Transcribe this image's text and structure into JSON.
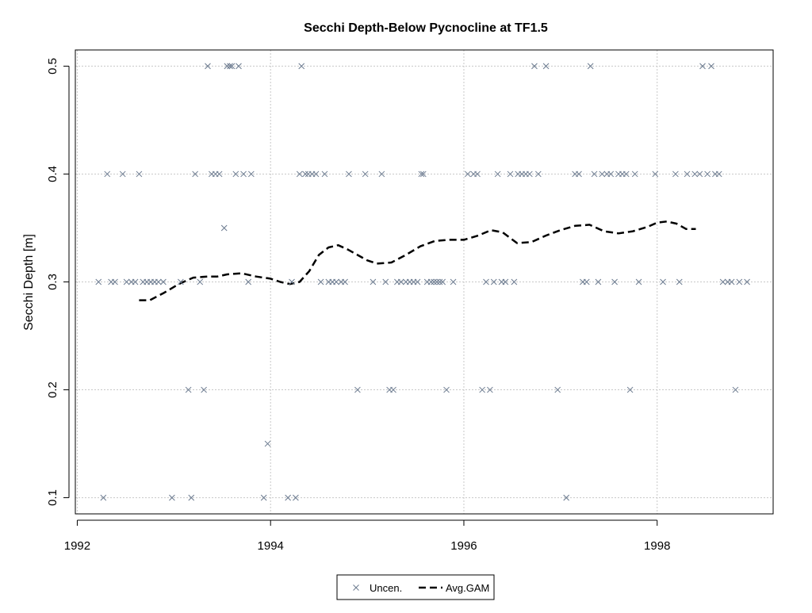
{
  "colors": {
    "points": "#6b7a8f",
    "gam": "#000000",
    "grid": "#c8c8c8",
    "frame": "#000000",
    "background": "#ffffff"
  },
  "chart_data": {
    "type": "scatter",
    "title": "Secchi Depth-Below Pycnocline at TF1.5",
    "xlabel": "",
    "ylabel": "Secchi Depth [m]",
    "xlim": [
      1991.98,
      1999.2
    ],
    "ylim": [
      0.085,
      0.515
    ],
    "x_ticks": [
      1992,
      1994,
      1996,
      1998
    ],
    "x_tick_labels": [
      "1992",
      "1994",
      "1996",
      "1998"
    ],
    "y_ticks": [
      0.1,
      0.2,
      0.3,
      0.4,
      0.5
    ],
    "y_tick_labels": [
      "0.1",
      "0.2",
      "0.3",
      "0.4",
      "0.5"
    ],
    "grid": true,
    "legend": {
      "placement": "bottom-center",
      "entries": [
        {
          "label": "Uncen.",
          "marker": "x-icon"
        },
        {
          "label": "Avg.GAM",
          "marker": "dashed-line"
        }
      ]
    },
    "series": [
      {
        "name": "Uncen.",
        "type": "scatter",
        "marker": "x",
        "points": [
          [
            1992.22,
            0.3
          ],
          [
            1992.27,
            0.1
          ],
          [
            1992.31,
            0.4
          ],
          [
            1992.35,
            0.3
          ],
          [
            1992.39,
            0.3
          ],
          [
            1992.47,
            0.4
          ],
          [
            1992.51,
            0.3
          ],
          [
            1992.56,
            0.3
          ],
          [
            1992.6,
            0.3
          ],
          [
            1992.64,
            0.4
          ],
          [
            1992.68,
            0.3
          ],
          [
            1992.72,
            0.3
          ],
          [
            1992.76,
            0.3
          ],
          [
            1992.8,
            0.3
          ],
          [
            1992.84,
            0.3
          ],
          [
            1992.89,
            0.3
          ],
          [
            1992.98,
            0.1
          ],
          [
            1993.07,
            0.3
          ],
          [
            1993.15,
            0.2
          ],
          [
            1993.18,
            0.1
          ],
          [
            1993.22,
            0.4
          ],
          [
            1993.27,
            0.3
          ],
          [
            1993.31,
            0.2
          ],
          [
            1993.35,
            0.5
          ],
          [
            1993.39,
            0.4
          ],
          [
            1993.43,
            0.4
          ],
          [
            1993.47,
            0.4
          ],
          [
            1993.52,
            0.35
          ],
          [
            1993.55,
            0.5
          ],
          [
            1993.58,
            0.5
          ],
          [
            1993.6,
            0.5
          ],
          [
            1993.64,
            0.4
          ],
          [
            1993.67,
            0.5
          ],
          [
            1993.72,
            0.4
          ],
          [
            1993.77,
            0.3
          ],
          [
            1993.8,
            0.4
          ],
          [
            1993.93,
            0.1
          ],
          [
            1993.97,
            0.15
          ],
          [
            1994.18,
            0.1
          ],
          [
            1994.22,
            0.3
          ],
          [
            1994.26,
            0.1
          ],
          [
            1994.3,
            0.4
          ],
          [
            1994.32,
            0.5
          ],
          [
            1994.36,
            0.4
          ],
          [
            1994.39,
            0.4
          ],
          [
            1994.43,
            0.4
          ],
          [
            1994.47,
            0.4
          ],
          [
            1994.52,
            0.3
          ],
          [
            1994.56,
            0.4
          ],
          [
            1994.6,
            0.3
          ],
          [
            1994.64,
            0.3
          ],
          [
            1994.68,
            0.3
          ],
          [
            1994.73,
            0.3
          ],
          [
            1994.77,
            0.3
          ],
          [
            1994.81,
            0.4
          ],
          [
            1994.9,
            0.2
          ],
          [
            1994.98,
            0.4
          ],
          [
            1995.06,
            0.3
          ],
          [
            1995.15,
            0.4
          ],
          [
            1995.19,
            0.3
          ],
          [
            1995.23,
            0.2
          ],
          [
            1995.27,
            0.2
          ],
          [
            1995.31,
            0.3
          ],
          [
            1995.35,
            0.3
          ],
          [
            1995.4,
            0.3
          ],
          [
            1995.44,
            0.3
          ],
          [
            1995.48,
            0.3
          ],
          [
            1995.52,
            0.3
          ],
          [
            1995.56,
            0.4
          ],
          [
            1995.58,
            0.4
          ],
          [
            1995.62,
            0.3
          ],
          [
            1995.66,
            0.3
          ],
          [
            1995.69,
            0.3
          ],
          [
            1995.72,
            0.3
          ],
          [
            1995.75,
            0.3
          ],
          [
            1995.78,
            0.3
          ],
          [
            1995.82,
            0.2
          ],
          [
            1995.89,
            0.3
          ],
          [
            1996.04,
            0.4
          ],
          [
            1996.1,
            0.4
          ],
          [
            1996.14,
            0.4
          ],
          [
            1996.19,
            0.2
          ],
          [
            1996.23,
            0.3
          ],
          [
            1996.27,
            0.2
          ],
          [
            1996.31,
            0.3
          ],
          [
            1996.35,
            0.4
          ],
          [
            1996.39,
            0.3
          ],
          [
            1996.43,
            0.3
          ],
          [
            1996.48,
            0.4
          ],
          [
            1996.52,
            0.3
          ],
          [
            1996.56,
            0.4
          ],
          [
            1996.6,
            0.4
          ],
          [
            1996.64,
            0.4
          ],
          [
            1996.68,
            0.4
          ],
          [
            1996.73,
            0.5
          ],
          [
            1996.77,
            0.4
          ],
          [
            1996.85,
            0.5
          ],
          [
            1996.97,
            0.2
          ],
          [
            1997.06,
            0.1
          ],
          [
            1997.15,
            0.4
          ],
          [
            1997.19,
            0.4
          ],
          [
            1997.23,
            0.3
          ],
          [
            1997.27,
            0.3
          ],
          [
            1997.31,
            0.5
          ],
          [
            1997.35,
            0.4
          ],
          [
            1997.39,
            0.3
          ],
          [
            1997.43,
            0.4
          ],
          [
            1997.48,
            0.4
          ],
          [
            1997.52,
            0.4
          ],
          [
            1997.56,
            0.3
          ],
          [
            1997.6,
            0.4
          ],
          [
            1997.64,
            0.4
          ],
          [
            1997.68,
            0.4
          ],
          [
            1997.72,
            0.2
          ],
          [
            1997.77,
            0.4
          ],
          [
            1997.81,
            0.3
          ],
          [
            1997.98,
            0.4
          ],
          [
            1998.06,
            0.3
          ],
          [
            1998.19,
            0.4
          ],
          [
            1998.23,
            0.3
          ],
          [
            1998.31,
            0.4
          ],
          [
            1998.39,
            0.4
          ],
          [
            1998.44,
            0.4
          ],
          [
            1998.47,
            0.5
          ],
          [
            1998.52,
            0.4
          ],
          [
            1998.56,
            0.5
          ],
          [
            1998.6,
            0.4
          ],
          [
            1998.64,
            0.4
          ],
          [
            1998.68,
            0.3
          ],
          [
            1998.73,
            0.3
          ],
          [
            1998.77,
            0.3
          ],
          [
            1998.81,
            0.2
          ],
          [
            1998.85,
            0.3
          ],
          [
            1998.93,
            0.3
          ]
        ]
      },
      {
        "name": "Avg.GAM",
        "type": "line",
        "style": "dashed",
        "points": [
          [
            1992.64,
            0.283
          ],
          [
            1992.75,
            0.283
          ],
          [
            1992.9,
            0.29
          ],
          [
            1993.05,
            0.298
          ],
          [
            1993.2,
            0.304
          ],
          [
            1993.35,
            0.305
          ],
          [
            1993.45,
            0.305
          ],
          [
            1993.55,
            0.307
          ],
          [
            1993.7,
            0.308
          ],
          [
            1993.85,
            0.305
          ],
          [
            1994.0,
            0.303
          ],
          [
            1994.1,
            0.3
          ],
          [
            1994.2,
            0.298
          ],
          [
            1994.3,
            0.3
          ],
          [
            1994.4,
            0.31
          ],
          [
            1994.5,
            0.325
          ],
          [
            1994.6,
            0.332
          ],
          [
            1994.7,
            0.334
          ],
          [
            1994.8,
            0.33
          ],
          [
            1994.9,
            0.325
          ],
          [
            1995.0,
            0.32
          ],
          [
            1995.1,
            0.317
          ],
          [
            1995.25,
            0.318
          ],
          [
            1995.4,
            0.325
          ],
          [
            1995.55,
            0.333
          ],
          [
            1995.7,
            0.338
          ],
          [
            1995.85,
            0.339
          ],
          [
            1996.0,
            0.339
          ],
          [
            1996.15,
            0.343
          ],
          [
            1996.28,
            0.348
          ],
          [
            1996.4,
            0.346
          ],
          [
            1996.55,
            0.336
          ],
          [
            1996.7,
            0.337
          ],
          [
            1996.85,
            0.343
          ],
          [
            1997.0,
            0.348
          ],
          [
            1997.15,
            0.352
          ],
          [
            1997.3,
            0.353
          ],
          [
            1997.45,
            0.347
          ],
          [
            1997.6,
            0.345
          ],
          [
            1997.75,
            0.347
          ],
          [
            1997.9,
            0.351
          ],
          [
            1998.0,
            0.355
          ],
          [
            1998.1,
            0.356
          ],
          [
            1998.2,
            0.354
          ],
          [
            1998.3,
            0.349
          ],
          [
            1998.4,
            0.349
          ]
        ]
      }
    ]
  }
}
